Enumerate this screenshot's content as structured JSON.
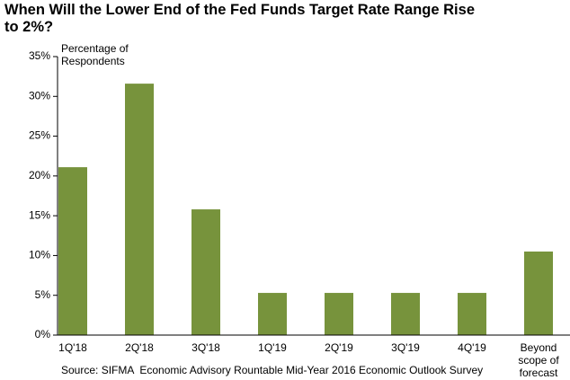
{
  "chart_data": {
    "type": "bar",
    "title": "When Will the Lower End of the Fed Funds Target Rate Range Rise to 2%?",
    "ylabel": "Percentage of Respondents",
    "source": "Source: SIFMA  Economic Advisory Rountable Mid-Year 2016 Economic Outlook Survey",
    "categories": [
      "1Q'18",
      "2Q'18",
      "3Q'18",
      "1Q'19",
      "2Q'19",
      "3Q'19",
      "4Q'19",
      "Beyond scope of forecast"
    ],
    "values": [
      21.1,
      31.6,
      15.8,
      5.3,
      5.3,
      5.3,
      5.3,
      10.5
    ],
    "color": "#77933c",
    "ylim": [
      0,
      35
    ],
    "yticks": [
      {
        "value": 0,
        "label": "0%"
      },
      {
        "value": 5,
        "label": "5%"
      },
      {
        "value": 10,
        "label": "10%"
      },
      {
        "value": 15,
        "label": "15%"
      },
      {
        "value": 20,
        "label": "20%"
      },
      {
        "value": 25,
        "label": "25%"
      },
      {
        "value": 30,
        "label": "30%"
      },
      {
        "value": 35,
        "label": "35%"
      }
    ],
    "grid": false
  }
}
